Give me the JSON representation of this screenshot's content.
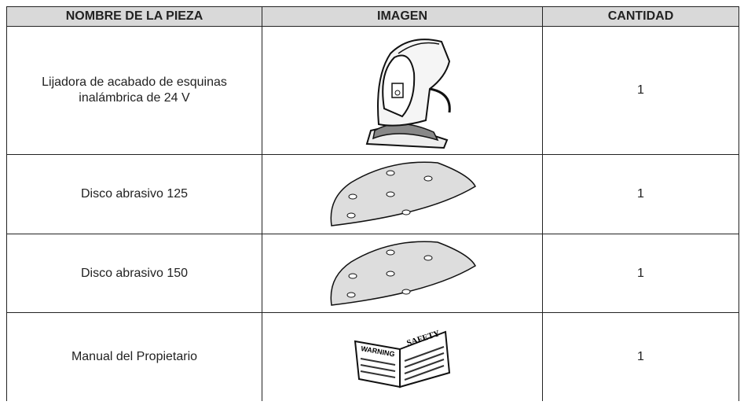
{
  "table": {
    "header": [
      "NOMBRE DE LA PIEZA",
      "IMAGEN",
      "CANTIDAD"
    ],
    "rows": [
      [
        "Lijadora de acabado de esquinas inalámbrica de 24 V",
        "1"
      ],
      [
        "Disco abrasivo 125",
        "1"
      ],
      [
        "Disco abrasivo 150",
        "1"
      ],
      [
        "Manual del Propietario",
        "1"
      ]
    ],
    "manual_labels": [
      "WARNING",
      "SAFETY"
    ]
  }
}
